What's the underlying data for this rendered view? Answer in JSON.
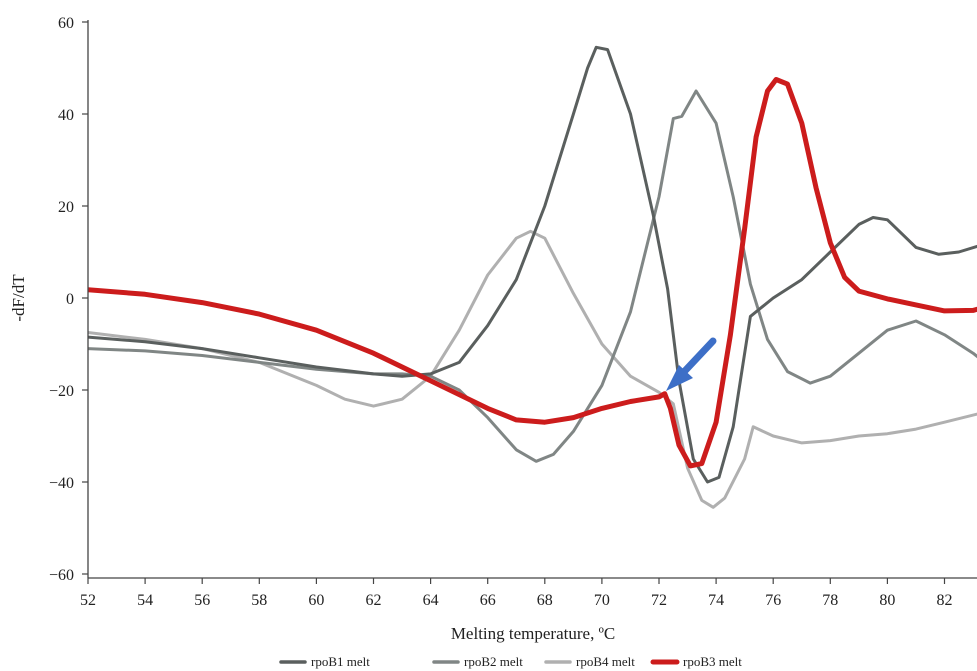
{
  "chart_data": {
    "type": "line",
    "title": "",
    "xlabel": "Melting temperature, ºC",
    "ylabel": "-dF/dT",
    "xlim": [
      52,
      83.3
    ],
    "ylim": [
      -60,
      60
    ],
    "x_ticks": [
      52,
      54,
      56,
      58,
      60,
      62,
      64,
      66,
      68,
      70,
      72,
      74,
      76,
      78,
      80,
      82
    ],
    "y_ticks": [
      60,
      40,
      20,
      0,
      -20,
      -40,
      -60
    ],
    "y_tick_labels": [
      "60",
      "40",
      "20",
      "0",
      "−20",
      "−40",
      "−60"
    ],
    "grid": false,
    "legend_position": "bottom",
    "legend_order": [
      0,
      1,
      2,
      3
    ],
    "draw_order": [
      2,
      1,
      0,
      3
    ],
    "series": [
      {
        "name": "rpoB1 melt",
        "color": "#5a5f5e",
        "width": 3,
        "points": [
          [
            52,
            -8.5
          ],
          [
            54,
            -9.5
          ],
          [
            56,
            -11
          ],
          [
            58,
            -13
          ],
          [
            60,
            -15
          ],
          [
            62,
            -16.5
          ],
          [
            63,
            -17
          ],
          [
            64,
            -16.5
          ],
          [
            65,
            -14
          ],
          [
            66,
            -6
          ],
          [
            67,
            4
          ],
          [
            68,
            20
          ],
          [
            69,
            40
          ],
          [
            69.5,
            50
          ],
          [
            69.8,
            54.5
          ],
          [
            70.2,
            54
          ],
          [
            71,
            40
          ],
          [
            71.8,
            18
          ],
          [
            72.3,
            2
          ],
          [
            72.7,
            -18
          ],
          [
            73.2,
            -35
          ],
          [
            73.7,
            -40
          ],
          [
            74.1,
            -39
          ],
          [
            74.6,
            -28
          ],
          [
            75.2,
            -4
          ],
          [
            76,
            0
          ],
          [
            77,
            4
          ],
          [
            78,
            10
          ],
          [
            79,
            16
          ],
          [
            79.5,
            17.5
          ],
          [
            80,
            17
          ],
          [
            81,
            11
          ],
          [
            81.8,
            9.5
          ],
          [
            82.5,
            10
          ],
          [
            83.3,
            11.5
          ]
        ]
      },
      {
        "name": "rpoB2 melt",
        "color": "#808685",
        "width": 3,
        "points": [
          [
            52,
            -11
          ],
          [
            54,
            -11.5
          ],
          [
            56,
            -12.5
          ],
          [
            58,
            -14
          ],
          [
            60,
            -15.5
          ],
          [
            62,
            -16.5
          ],
          [
            63,
            -16.5
          ],
          [
            64,
            -17
          ],
          [
            65,
            -20
          ],
          [
            66,
            -26
          ],
          [
            67,
            -33
          ],
          [
            67.7,
            -35.5
          ],
          [
            68.3,
            -34
          ],
          [
            69,
            -29
          ],
          [
            70,
            -19
          ],
          [
            71,
            -3
          ],
          [
            72,
            22
          ],
          [
            72.5,
            39
          ],
          [
            72.8,
            39.5
          ],
          [
            73.3,
            45
          ],
          [
            74,
            38
          ],
          [
            74.6,
            22
          ],
          [
            75.2,
            3
          ],
          [
            75.8,
            -9
          ],
          [
            76.5,
            -16
          ],
          [
            77.3,
            -18.5
          ],
          [
            78,
            -17
          ],
          [
            79,
            -12
          ],
          [
            80,
            -7
          ],
          [
            81,
            -5
          ],
          [
            82,
            -8
          ],
          [
            83,
            -12
          ],
          [
            83.3,
            -13.5
          ]
        ]
      },
      {
        "name": "rpoB4 melt",
        "color": "#b0b0b0",
        "width": 3,
        "points": [
          [
            52,
            -7.5
          ],
          [
            54,
            -9
          ],
          [
            56,
            -11
          ],
          [
            58,
            -14
          ],
          [
            60,
            -19
          ],
          [
            61,
            -22
          ],
          [
            62,
            -23.5
          ],
          [
            63,
            -22
          ],
          [
            64,
            -17
          ],
          [
            65,
            -7
          ],
          [
            66,
            5
          ],
          [
            67,
            13
          ],
          [
            67.5,
            14.5
          ],
          [
            68,
            13
          ],
          [
            69,
            1
          ],
          [
            70,
            -10
          ],
          [
            71,
            -17
          ],
          [
            72,
            -20.5
          ],
          [
            72.5,
            -23
          ],
          [
            73,
            -37
          ],
          [
            73.5,
            -44
          ],
          [
            73.9,
            -45.5
          ],
          [
            74.3,
            -43.5
          ],
          [
            75,
            -35
          ],
          [
            75.3,
            -28
          ],
          [
            76,
            -30
          ],
          [
            77,
            -31.5
          ],
          [
            78,
            -31
          ],
          [
            79,
            -30
          ],
          [
            80,
            -29.5
          ],
          [
            81,
            -28.5
          ],
          [
            82,
            -27
          ],
          [
            83.3,
            -25
          ]
        ]
      },
      {
        "name": "rpoB3 melt",
        "color": "#cc1c1c",
        "width": 5,
        "points": [
          [
            52,
            1.8
          ],
          [
            54,
            0.8
          ],
          [
            56,
            -1
          ],
          [
            58,
            -3.5
          ],
          [
            60,
            -7
          ],
          [
            62,
            -12
          ],
          [
            64,
            -18
          ],
          [
            66,
            -24
          ],
          [
            67,
            -26.5
          ],
          [
            68,
            -27
          ],
          [
            69,
            -26
          ],
          [
            70,
            -24
          ],
          [
            71,
            -22.5
          ],
          [
            72,
            -21.5
          ],
          [
            72.2,
            -20.8
          ],
          [
            72.4,
            -24
          ],
          [
            72.7,
            -32
          ],
          [
            73.1,
            -36.5
          ],
          [
            73.5,
            -36
          ],
          [
            74,
            -27
          ],
          [
            74.5,
            -8
          ],
          [
            75,
            15
          ],
          [
            75.4,
            35
          ],
          [
            75.8,
            45
          ],
          [
            76.1,
            47.5
          ],
          [
            76.5,
            46.5
          ],
          [
            77,
            38
          ],
          [
            77.5,
            24
          ],
          [
            78,
            12
          ],
          [
            78.5,
            4.5
          ],
          [
            79,
            1.5
          ],
          [
            80,
            -0.2
          ],
          [
            81,
            -1.5
          ],
          [
            82,
            -2.8
          ],
          [
            83,
            -2.7
          ],
          [
            83.3,
            -2.2
          ]
        ]
      }
    ]
  }
}
